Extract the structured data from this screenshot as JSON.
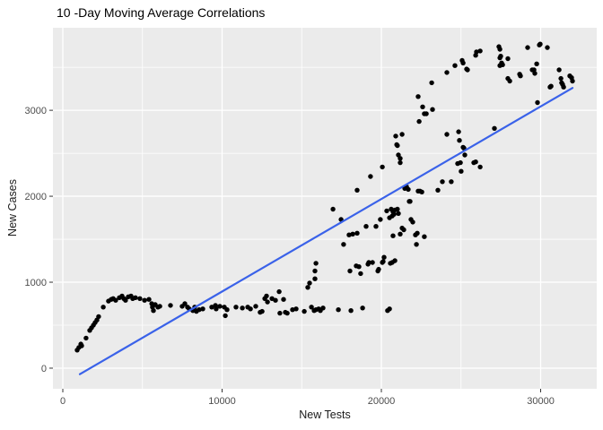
{
  "window": {
    "background": "#FFFFFF"
  },
  "chart_data": {
    "type": "scatter",
    "title": "10 -Day Moving Average Correlations",
    "xlabel": "New Tests",
    "ylabel": "New Cases",
    "xlim": [
      -620,
      33520
    ],
    "ylim": [
      -240,
      3960
    ],
    "x_ticks": [
      0,
      10000,
      20000,
      30000
    ],
    "x_minor_ticks": [
      5000,
      15000,
      25000
    ],
    "y_ticks": [
      0,
      1000,
      2000,
      3000
    ],
    "y_minor_ticks": [
      500,
      1500,
      2500,
      3500
    ],
    "grid": true,
    "legend": false,
    "panel_bg": "#EBEBEB",
    "grid_color": "#FFFFFF",
    "point_color": "#000000",
    "trend_color": "#3A62E9",
    "tick_color": "#333333",
    "tick_label_color": "#4D4D4D",
    "trend_line": {
      "x": [
        1070,
        32000
      ],
      "y": [
        -70,
        3260
      ]
    },
    "points": [
      [
        900,
        210
      ],
      [
        1010,
        240
      ],
      [
        1130,
        280
      ],
      [
        1180,
        260
      ],
      [
        1460,
        350
      ],
      [
        1690,
        440
      ],
      [
        1800,
        470
      ],
      [
        1920,
        500
      ],
      [
        2030,
        530
      ],
      [
        2140,
        560
      ],
      [
        2250,
        600
      ],
      [
        2540,
        710
      ],
      [
        2870,
        780
      ],
      [
        3040,
        800
      ],
      [
        3160,
        810
      ],
      [
        3320,
        790
      ],
      [
        3550,
        820
      ],
      [
        3720,
        840
      ],
      [
        3830,
        810
      ],
      [
        3940,
        790
      ],
      [
        4110,
        830
      ],
      [
        4280,
        840
      ],
      [
        4390,
        810
      ],
      [
        4560,
        820
      ],
      [
        4840,
        810
      ],
      [
        5130,
        790
      ],
      [
        5410,
        800
      ],
      [
        5580,
        750
      ],
      [
        5630,
        710
      ],
      [
        5690,
        670
      ],
      [
        5800,
        740
      ],
      [
        5970,
        710
      ],
      [
        6090,
        720
      ],
      [
        6760,
        730
      ],
      [
        7490,
        720
      ],
      [
        7660,
        750
      ],
      [
        7830,
        710
      ],
      [
        7940,
        690
      ],
      [
        8170,
        670
      ],
      [
        8280,
        710
      ],
      [
        8390,
        660
      ],
      [
        8560,
        680
      ],
      [
        8790,
        690
      ],
      [
        9350,
        710
      ],
      [
        9580,
        730
      ],
      [
        9630,
        690
      ],
      [
        9860,
        720
      ],
      [
        10140,
        710
      ],
      [
        10200,
        610
      ],
      [
        10310,
        680
      ],
      [
        10870,
        710
      ],
      [
        11270,
        700
      ],
      [
        11610,
        710
      ],
      [
        11780,
        690
      ],
      [
        12110,
        720
      ],
      [
        12390,
        650
      ],
      [
        12510,
        660
      ],
      [
        12680,
        810
      ],
      [
        12790,
        840
      ],
      [
        12850,
        770
      ],
      [
        13130,
        810
      ],
      [
        13350,
        790
      ],
      [
        13580,
        890
      ],
      [
        13630,
        640
      ],
      [
        13860,
        800
      ],
      [
        13970,
        650
      ],
      [
        14090,
        640
      ],
      [
        14420,
        680
      ],
      [
        14650,
        690
      ],
      [
        15160,
        660
      ],
      [
        15380,
        940
      ],
      [
        15490,
        990
      ],
      [
        15610,
        710
      ],
      [
        15780,
        670
      ],
      [
        15830,
        1040
      ],
      [
        15890,
        680
      ],
      [
        16060,
        690
      ],
      [
        16170,
        670
      ],
      [
        16340,
        700
      ],
      [
        15830,
        1130
      ],
      [
        15890,
        1220
      ],
      [
        17300,
        680
      ],
      [
        18030,
        1130
      ],
      [
        18090,
        670
      ],
      [
        18420,
        1190
      ],
      [
        18590,
        1180
      ],
      [
        18700,
        1100
      ],
      [
        18820,
        700
      ],
      [
        19160,
        1210
      ],
      [
        19210,
        1230
      ],
      [
        19440,
        1230
      ],
      [
        19780,
        1130
      ],
      [
        19830,
        1150
      ],
      [
        20060,
        1230
      ],
      [
        20110,
        1240
      ],
      [
        20390,
        670
      ],
      [
        20510,
        690
      ],
      [
        20560,
        1220
      ],
      [
        20680,
        1230
      ],
      [
        20850,
        1250
      ],
      [
        16960,
        1850
      ],
      [
        17470,
        1730
      ],
      [
        17630,
        1440
      ],
      [
        17970,
        1550
      ],
      [
        18200,
        1560
      ],
      [
        18480,
        1570
      ],
      [
        18480,
        2070
      ],
      [
        19040,
        1650
      ],
      [
        19320,
        2230
      ],
      [
        19660,
        1650
      ],
      [
        19940,
        1730
      ],
      [
        20060,
        2340
      ],
      [
        20170,
        1290
      ],
      [
        20340,
        1830
      ],
      [
        20510,
        1750
      ],
      [
        20620,
        1850
      ],
      [
        20680,
        1770
      ],
      [
        20730,
        1820
      ],
      [
        20790,
        1790
      ],
      [
        20850,
        1840
      ],
      [
        21010,
        1850
      ],
      [
        21070,
        1800
      ],
      [
        20730,
        1540
      ],
      [
        20900,
        2700
      ],
      [
        20960,
        2600
      ],
      [
        21010,
        2590
      ],
      [
        21070,
        2480
      ],
      [
        21180,
        2440
      ],
      [
        21180,
        2390
      ],
      [
        21300,
        2720
      ],
      [
        21180,
        1560
      ],
      [
        21300,
        1630
      ],
      [
        21410,
        1610
      ],
      [
        21470,
        2090
      ],
      [
        21580,
        2110
      ],
      [
        21690,
        2080
      ],
      [
        21750,
        1940
      ],
      [
        21800,
        1940
      ],
      [
        21860,
        1730
      ],
      [
        21970,
        1700
      ],
      [
        22140,
        1550
      ],
      [
        22200,
        1440
      ],
      [
        22250,
        1570
      ],
      [
        22310,
        2060
      ],
      [
        22420,
        2060
      ],
      [
        22540,
        2050
      ],
      [
        22700,
        1530
      ],
      [
        23550,
        2070
      ],
      [
        23830,
        2170
      ],
      [
        24110,
        2720
      ],
      [
        24390,
        2170
      ],
      [
        24790,
        2380
      ],
      [
        24960,
        2390
      ],
      [
        25010,
        2290
      ],
      [
        25130,
        2570
      ],
      [
        25240,
        2480
      ],
      [
        25800,
        2390
      ],
      [
        25920,
        2400
      ],
      [
        26200,
        2340
      ],
      [
        24850,
        2750
      ],
      [
        24900,
        2650
      ],
      [
        25180,
        2560
      ],
      [
        22310,
        3160
      ],
      [
        22370,
        2870
      ],
      [
        22590,
        3040
      ],
      [
        22700,
        2960
      ],
      [
        22820,
        2960
      ],
      [
        23160,
        3320
      ],
      [
        23210,
        3010
      ],
      [
        24110,
        3440
      ],
      [
        24620,
        3520
      ],
      [
        25070,
        3580
      ],
      [
        25130,
        3550
      ],
      [
        25350,
        3480
      ],
      [
        25410,
        3470
      ],
      [
        25920,
        3640
      ],
      [
        25970,
        3680
      ],
      [
        26200,
        3690
      ],
      [
        27100,
        2790
      ],
      [
        27380,
        3740
      ],
      [
        27440,
        3710
      ],
      [
        27490,
        3630
      ],
      [
        27440,
        3610
      ],
      [
        27550,
        3550
      ],
      [
        27440,
        3520
      ],
      [
        27610,
        3530
      ],
      [
        27940,
        3600
      ],
      [
        27940,
        3370
      ],
      [
        28060,
        3340
      ],
      [
        28680,
        3420
      ],
      [
        28730,
        3400
      ],
      [
        29180,
        3730
      ],
      [
        29470,
        3470
      ],
      [
        29580,
        3470
      ],
      [
        29630,
        3430
      ],
      [
        29750,
        3540
      ],
      [
        29800,
        3090
      ],
      [
        29920,
        3760
      ],
      [
        29970,
        3770
      ],
      [
        30420,
        3730
      ],
      [
        30590,
        3270
      ],
      [
        30650,
        3280
      ],
      [
        31160,
        3470
      ],
      [
        31270,
        3370
      ],
      [
        31320,
        3320
      ],
      [
        31380,
        3300
      ],
      [
        31440,
        3270
      ],
      [
        31830,
        3400
      ],
      [
        31940,
        3380
      ],
      [
        32000,
        3340
      ]
    ]
  }
}
